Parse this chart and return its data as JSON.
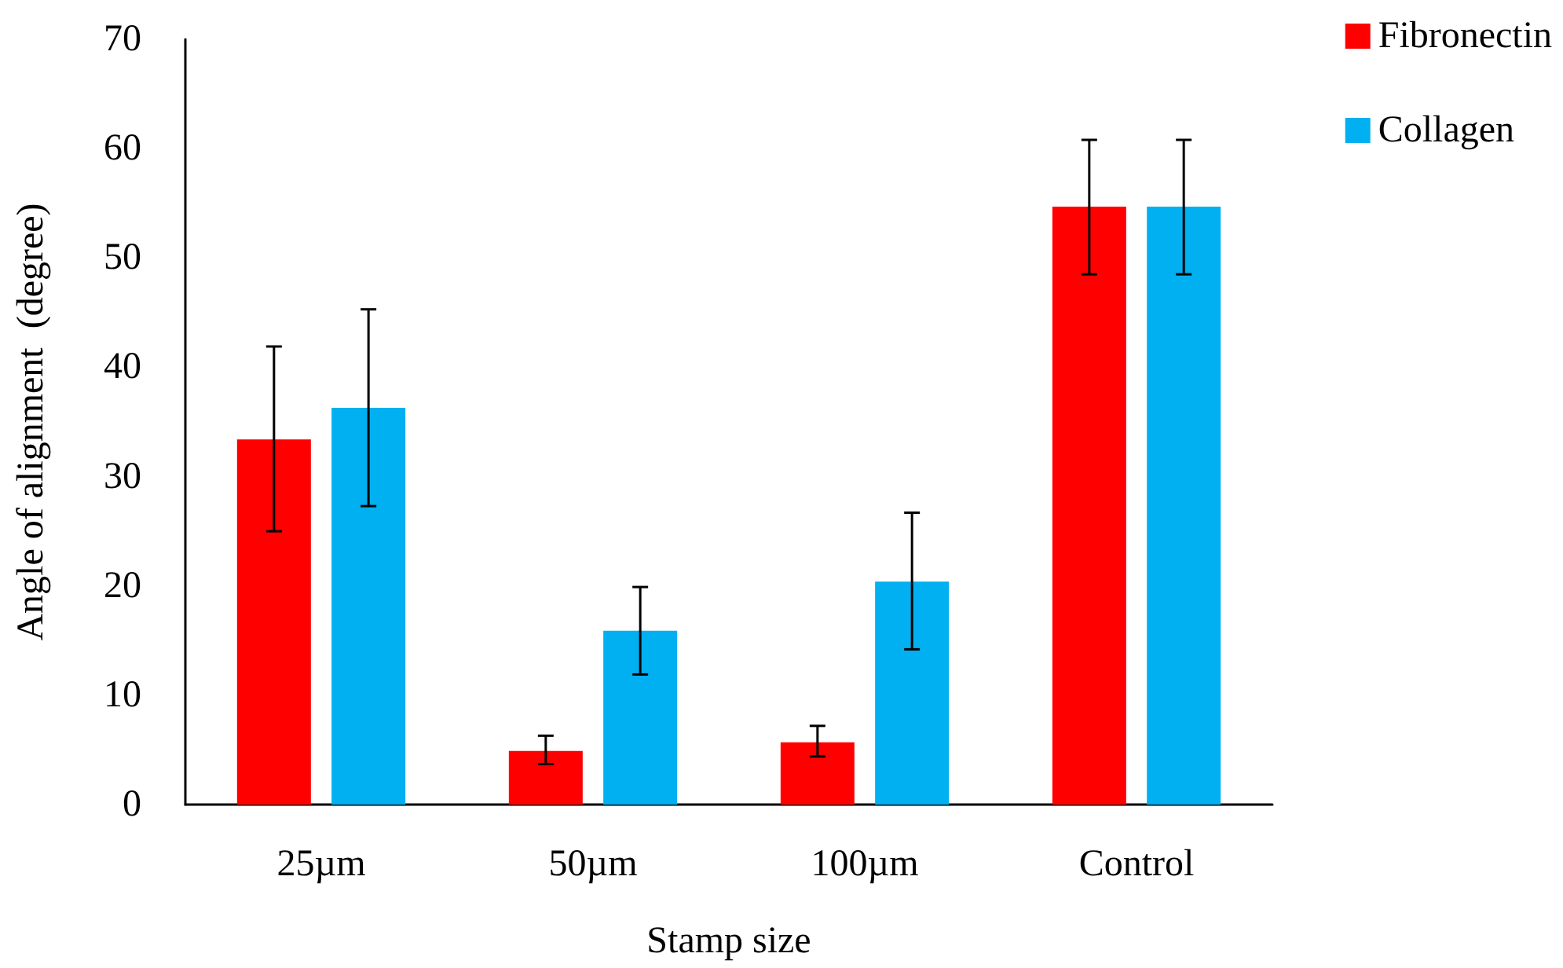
{
  "chart_data": {
    "type": "bar",
    "xlabel": "Stamp size",
    "ylabel": "Angle of alignment  (degree)",
    "categories": [
      "25µm",
      "50µm",
      "100µm",
      "Control"
    ],
    "series": [
      {
        "name": "Fibronectin",
        "color": "#ff0000",
        "values": [
          33.4,
          4.9,
          5.7,
          54.7
        ],
        "errors": [
          [
            25.0,
            41.9
          ],
          [
            3.7,
            6.3
          ],
          [
            4.4,
            7.2
          ],
          [
            48.5,
            60.8
          ]
        ]
      },
      {
        "name": "Collagen",
        "color": "#00b0f0",
        "values": [
          36.3,
          15.9,
          20.4,
          54.7
        ],
        "errors": [
          [
            27.3,
            45.3
          ],
          [
            11.9,
            19.9
          ],
          [
            14.2,
            26.7
          ],
          [
            48.5,
            60.8
          ]
        ]
      }
    ],
    "ylim": [
      0,
      70
    ],
    "yticks": [
      0,
      10,
      20,
      30,
      40,
      50,
      60,
      70
    ],
    "grid": false,
    "legend": "top right"
  }
}
